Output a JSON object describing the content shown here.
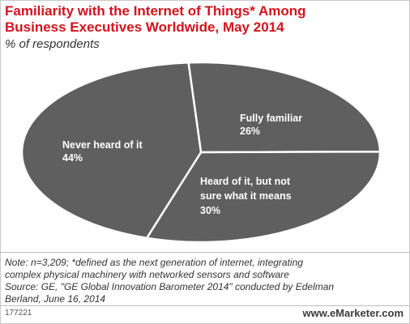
{
  "title_line1": "Familiarity with the Internet of Things* Among",
  "title_line2": "Business Executives Worldwide, May 2014",
  "subtitle": "% of respondents",
  "chart_data": {
    "type": "pie",
    "title": "Familiarity with the Internet of Things* Among Business Executives Worldwide, May 2014",
    "subtitle": "% of respondents",
    "slices": [
      {
        "label": "Fully familiar",
        "value": 26,
        "value_label": "26%"
      },
      {
        "label": "Heard of it, but not sure what it means",
        "value": 30,
        "value_label": "30%"
      },
      {
        "label": "Never heard of it",
        "value": 44,
        "value_label": "44%"
      }
    ],
    "colors": {
      "slice": "#5f5f5f",
      "separator": "#ffffff",
      "label": "#ffffff"
    }
  },
  "labels": {
    "fully_line1": "Fully familiar",
    "fully_pct": "26%",
    "heard_line1": "Heard of it, but not",
    "heard_line2": "sure what it means",
    "heard_pct": "30%",
    "never_line1": "Never heard of it",
    "never_pct": "44%"
  },
  "note": {
    "line1": "Note: n=3,209; *defined as the next generation of internet, integrating",
    "line2": "complex physical machinery with networked sensors and software",
    "line3": "Source: GE, \"GE Global Innovation Barometer 2014\" conducted by Edelman",
    "line4": "Berland, June 16, 2014"
  },
  "footer": {
    "id": "177221",
    "brand": "www.eMarketer.com"
  },
  "colors": {
    "title": "#d2131c",
    "slice": "#5f5f5f"
  }
}
